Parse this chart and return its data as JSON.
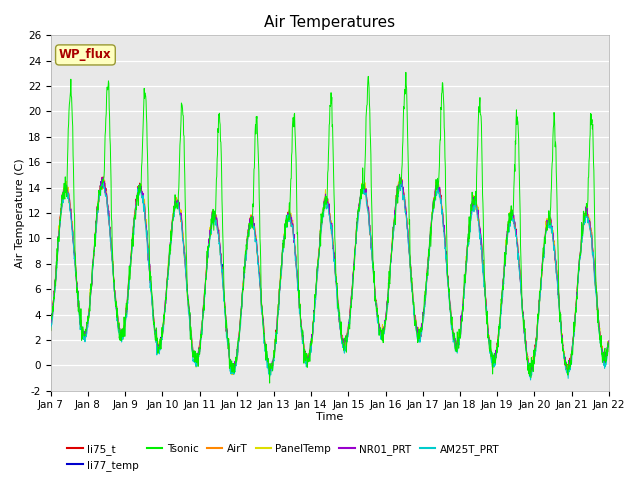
{
  "title": "Air Temperatures",
  "xlabel": "Time",
  "ylabel": "Air Temperature (C)",
  "ylim": [
    -2,
    26
  ],
  "yticks": [
    -2,
    0,
    2,
    4,
    6,
    8,
    10,
    12,
    14,
    16,
    18,
    20,
    22,
    24,
    26
  ],
  "series_colors": {
    "li75_t": "#dd0000",
    "li77_temp": "#0000cc",
    "Tsonic": "#00ee00",
    "AirT": "#ff8800",
    "PanelTemp": "#dddd00",
    "NR01_PRT": "#9900cc",
    "AM25T_PRT": "#00cccc"
  },
  "annotation_text": "WP_flux",
  "background_color": "#ffffff",
  "plot_bg_color": "#e8e8e8",
  "grid_color": "#ffffff",
  "title_fontsize": 11,
  "axis_fontsize": 8,
  "tick_fontsize": 7.5
}
